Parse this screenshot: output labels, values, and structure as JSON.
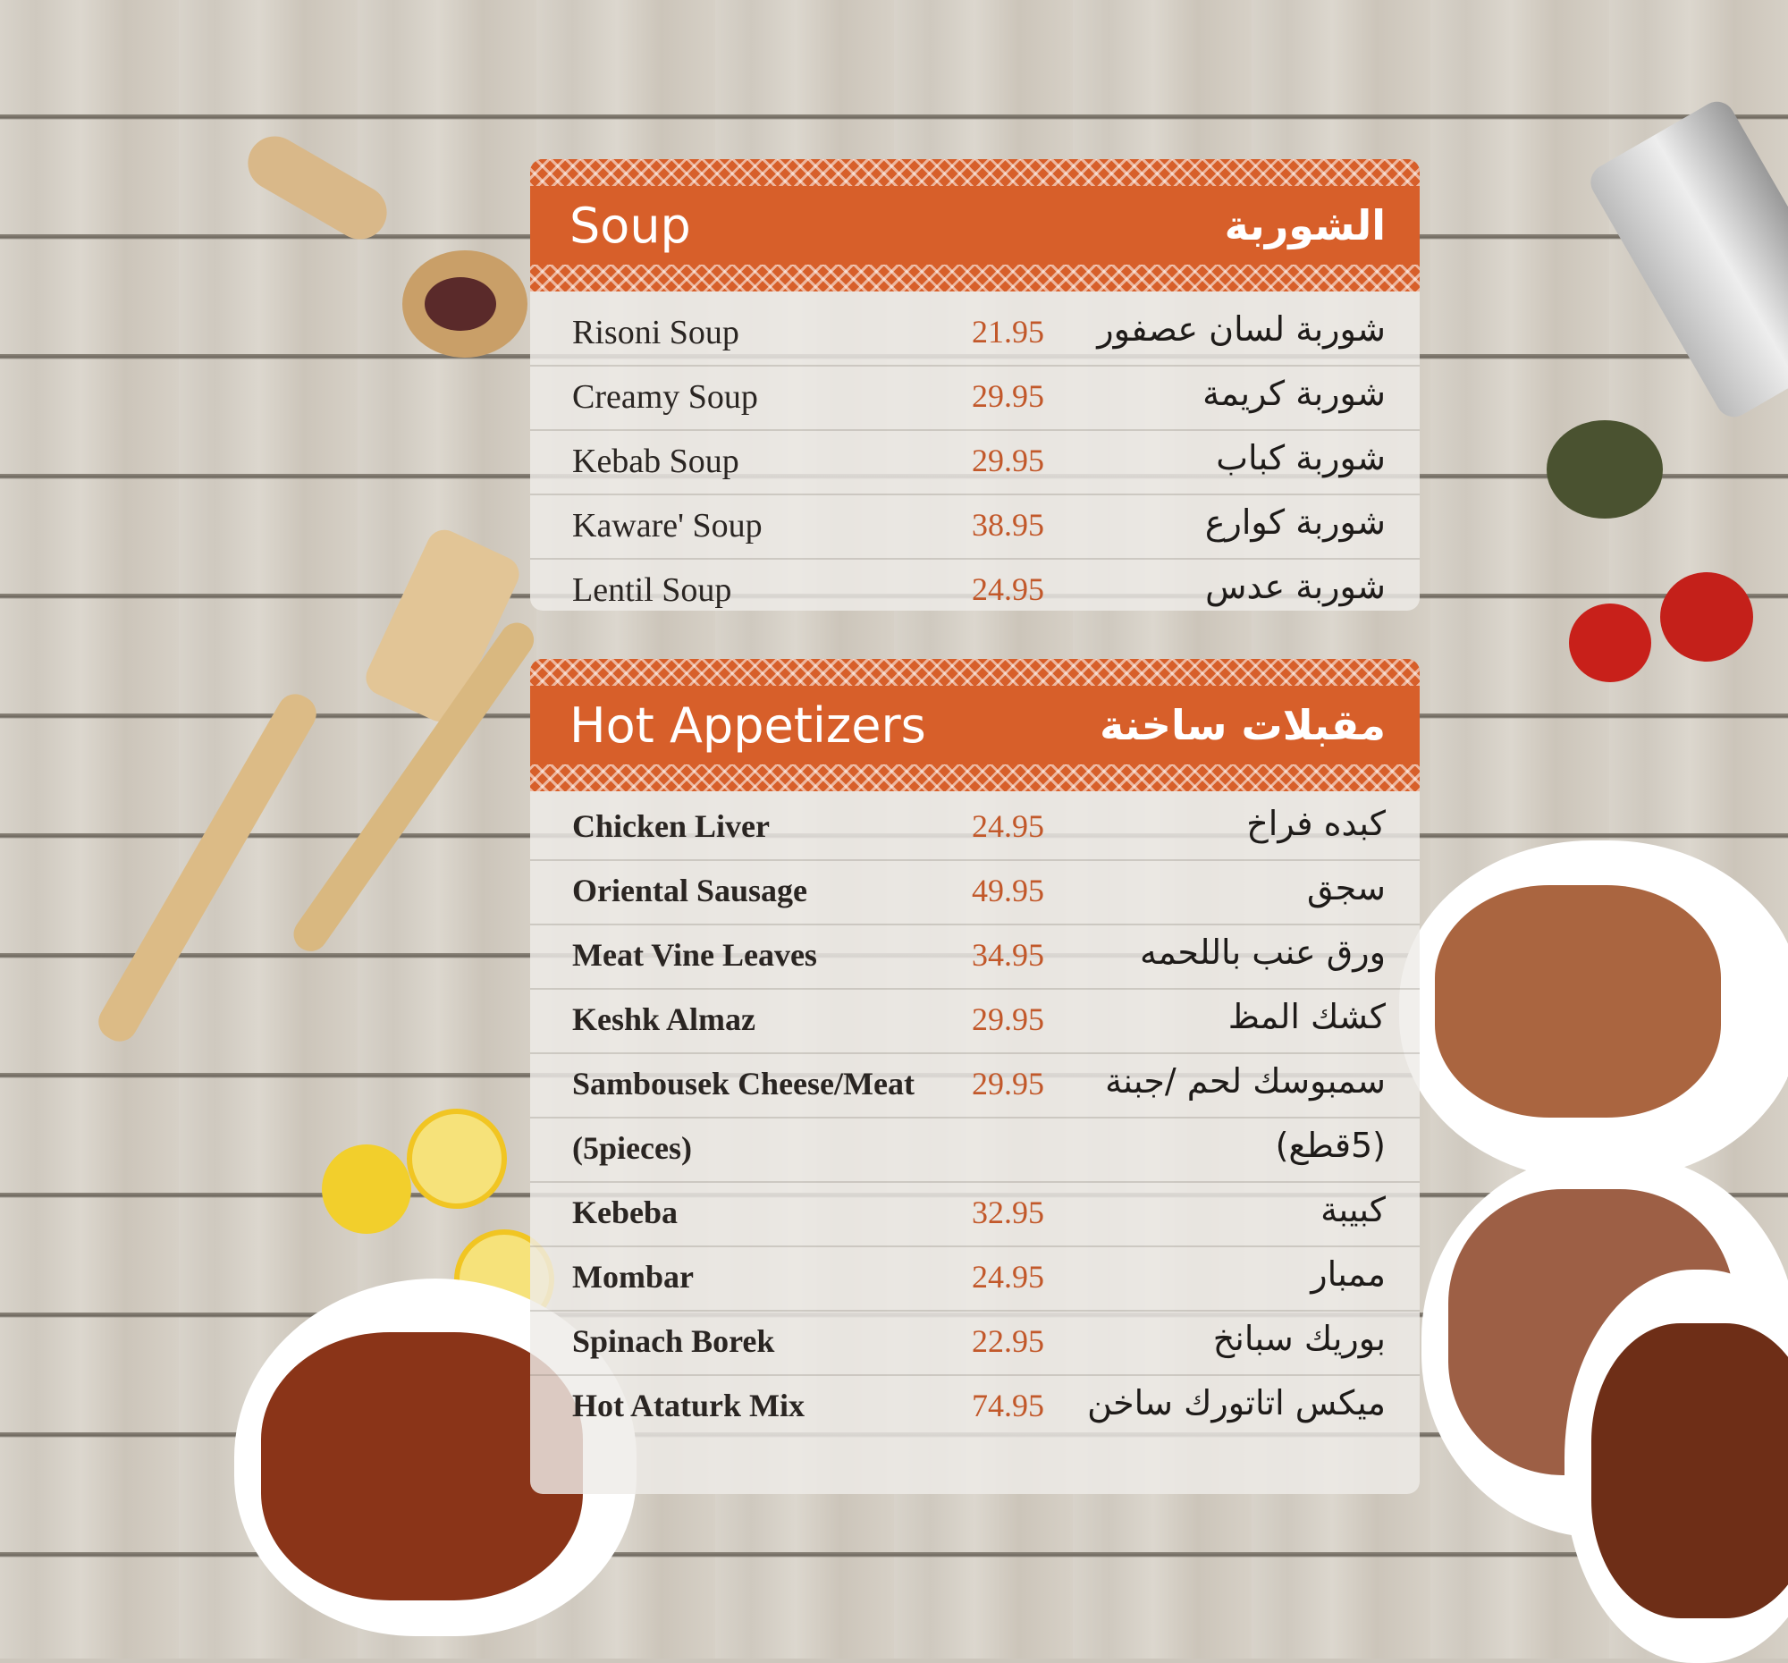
{
  "colors": {
    "header": "#d75f2a",
    "price": "#c2582a",
    "panel": "#eeece8"
  },
  "sections": [
    {
      "title_en": "Soup",
      "title_ar": "الشوربة",
      "items": [
        {
          "en": "Risoni Soup",
          "price": "21.95",
          "ar": "شوربة لسان عصفور"
        },
        {
          "en": "Creamy Soup",
          "price": "29.95",
          "ar": "شوربة كريمة"
        },
        {
          "en": "Kebab Soup",
          "price": "29.95",
          "ar": "شوربة كباب"
        },
        {
          "en": "Kaware' Soup",
          "price": "38.95",
          "ar": "شوربة كوارع"
        },
        {
          "en": "Lentil Soup",
          "price": "24.95",
          "ar": "شوربة عدس"
        }
      ]
    },
    {
      "title_en": "Hot Appetizers",
      "title_ar": "مقبلات ساخنة",
      "items": [
        {
          "en": "Chicken Liver",
          "price": "24.95",
          "ar": "كبده فراخ"
        },
        {
          "en": "Oriental Sausage",
          "price": "49.95",
          "ar": "سجق"
        },
        {
          "en": "Meat Vine Leaves",
          "price": "34.95",
          "ar": "ورق عنب باللحمه"
        },
        {
          "en": "Keshk Almaz",
          "price": "29.95",
          "ar": "كشك المظ"
        },
        {
          "en": "Sambousek Cheese/Meat",
          "price": "29.95",
          "ar": "سمبوسك لحم /جبنة"
        },
        {
          "en": "(5pieces)",
          "price": "",
          "ar": "(5قطع)"
        },
        {
          "en": "Kebeba",
          "price": "32.95",
          "ar": "كبيبة"
        },
        {
          "en": "Mombar",
          "price": "24.95",
          "ar": "ممبار"
        },
        {
          "en": "Spinach Borek",
          "price": "22.95",
          "ar": "بوريك سبانخ"
        },
        {
          "en": "Hot Ataturk Mix",
          "price": "74.95",
          "ar": "ميكس اتاتورك ساخن"
        }
      ]
    }
  ]
}
